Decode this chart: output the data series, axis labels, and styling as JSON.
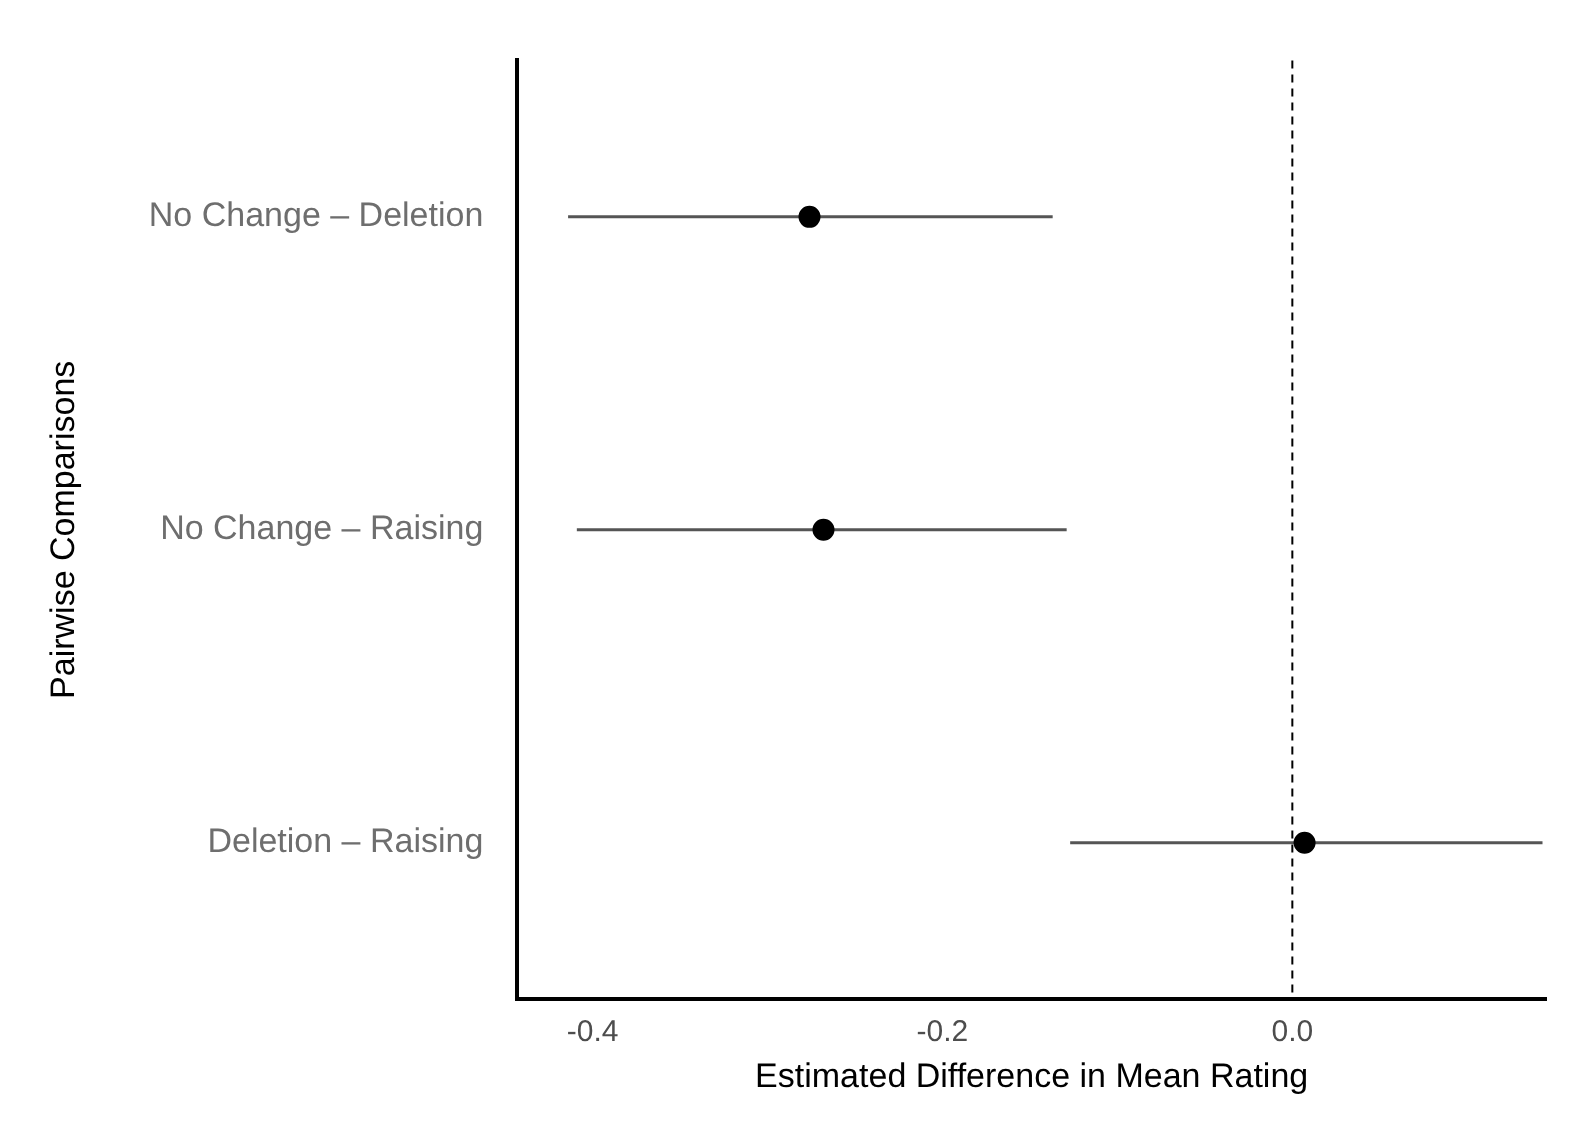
{
  "chart_data": {
    "type": "scatter",
    "orientation": "horizontal",
    "xlabel": "Estimated Difference in Mean Rating",
    "ylabel": "Pairwise Comparisons",
    "categories": [
      "No Change – Deletion",
      "No Change – Raising",
      "Deletion – Raising"
    ],
    "values": [
      -0.276,
      -0.268,
      0.007
    ],
    "errors": [
      [
        -0.414,
        -0.137
      ],
      [
        -0.409,
        -0.129
      ],
      [
        -0.127,
        0.143
      ]
    ],
    "color": "#000000",
    "marker": "circle",
    "xlim": [
      -0.443,
      0.145
    ],
    "xticks": [
      {
        "value": -0.4,
        "label": "-0.4"
      },
      {
        "value": -0.2,
        "label": "-0.2"
      },
      {
        "value": 0,
        "label": "0.0"
      }
    ],
    "ref_lines": [
      {
        "axis": "x",
        "value": 0,
        "line_style": "dashed",
        "color": "#000000"
      }
    ],
    "grid": false,
    "legend": false
  }
}
